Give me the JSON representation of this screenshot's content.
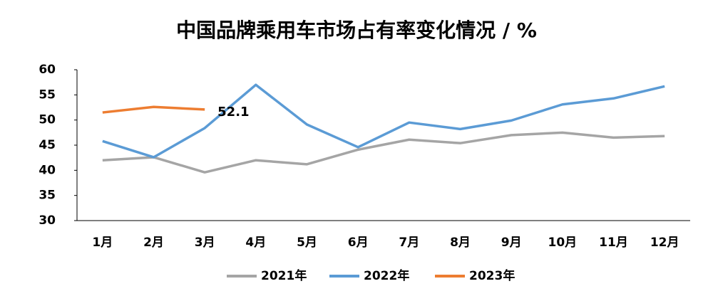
{
  "chart_data": {
    "type": "line",
    "title": "中国品牌乘用车市场占有率变化情况 / %",
    "categories": [
      "1月",
      "2月",
      "3月",
      "4月",
      "5月",
      "6月",
      "7月",
      "8月",
      "9月",
      "10月",
      "11月",
      "12月"
    ],
    "series": [
      {
        "name": "2021年",
        "color": "#a5a5a5",
        "values": [
          42.0,
          42.6,
          39.6,
          42.0,
          41.2,
          44.1,
          46.1,
          45.4,
          47.0,
          47.5,
          46.5,
          46.8
        ]
      },
      {
        "name": "2022年",
        "color": "#5b9bd5",
        "values": [
          45.8,
          42.6,
          48.4,
          57.0,
          49.1,
          44.6,
          49.5,
          48.2,
          49.9,
          53.1,
          54.3,
          56.7
        ]
      },
      {
        "name": "2023年",
        "color": "#ed7d31",
        "values": [
          51.5,
          52.6,
          52.1,
          null,
          null,
          null,
          null,
          null,
          null,
          null,
          null,
          null
        ],
        "value_labels": [
          null,
          null,
          "52.1",
          null,
          null,
          null,
          null,
          null,
          null,
          null,
          null,
          null
        ]
      }
    ],
    "ylim": [
      30,
      60
    ],
    "yticks": [
      30,
      35,
      40,
      45,
      50,
      55,
      60
    ],
    "grid": false,
    "legend": "bottom"
  }
}
